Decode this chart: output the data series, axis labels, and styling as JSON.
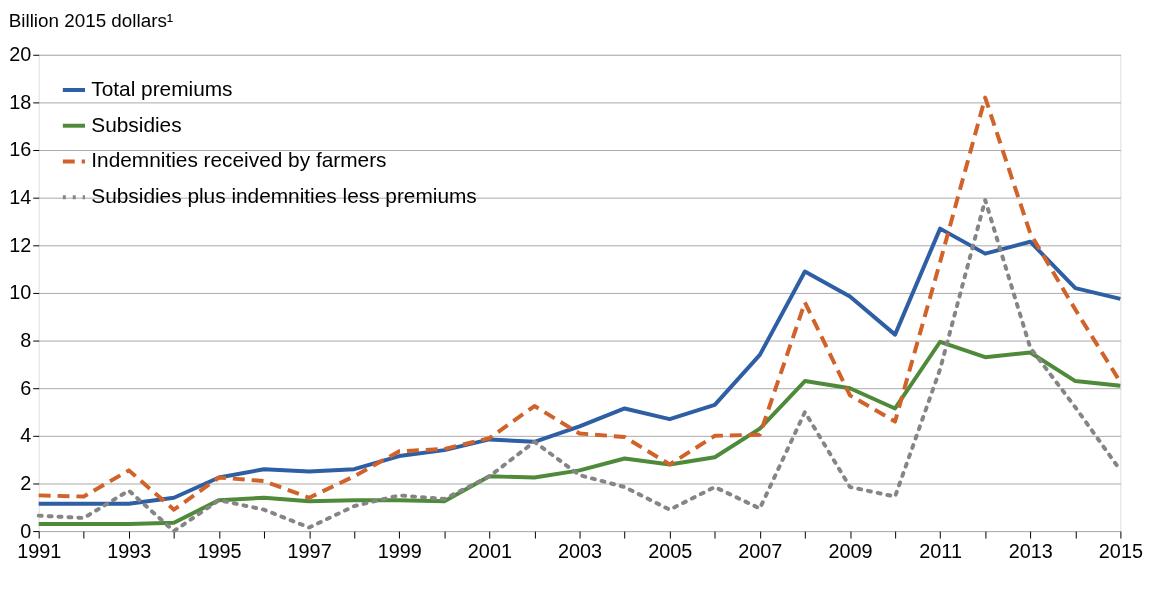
{
  "chart_data": {
    "type": "line",
    "ylabel": "Billion 2015 dollars¹",
    "x": [
      1991,
      1992,
      1993,
      1994,
      1995,
      1996,
      1997,
      1998,
      1999,
      2000,
      2001,
      2002,
      2003,
      2004,
      2005,
      2006,
      2007,
      2008,
      2009,
      2010,
      2011,
      2012,
      2013,
      2014,
      2015
    ],
    "series": [
      {
        "name": "Total premiums",
        "color": "#2e5ea3",
        "line_style": "solid",
        "values": [
          1.15,
          1.15,
          1.15,
          1.4,
          2.25,
          2.6,
          2.5,
          2.6,
          3.15,
          3.4,
          3.85,
          3.75,
          4.4,
          5.15,
          4.7,
          5.3,
          7.4,
          10.9,
          9.85,
          8.25,
          12.7,
          11.65,
          12.15,
          10.2,
          9.75
        ]
      },
      {
        "name": "Subsidies",
        "color": "#4e8a3a",
        "line_style": "solid",
        "values": [
          0.3,
          0.3,
          0.3,
          0.35,
          1.3,
          1.4,
          1.25,
          1.3,
          1.3,
          1.25,
          2.3,
          2.25,
          2.55,
          3.05,
          2.8,
          3.1,
          4.3,
          6.3,
          6.0,
          5.15,
          7.95,
          7.3,
          7.5,
          6.3,
          6.1
        ]
      },
      {
        "name": "Indemnities received by farmers",
        "color": "#d0622a",
        "line_style": "dashed",
        "values": [
          1.5,
          1.45,
          2.55,
          0.9,
          2.25,
          2.1,
          1.4,
          2.3,
          3.35,
          3.45,
          3.9,
          5.25,
          4.1,
          3.95,
          2.8,
          4.0,
          4.05,
          9.6,
          5.7,
          4.6,
          11.3,
          18.2,
          12.5,
          9.3,
          6.25
        ]
      },
      {
        "name": "Subsidies plus indemnities less premiums",
        "color": "#858585",
        "line_style": "dotted",
        "values": [
          0.65,
          0.55,
          1.7,
          0.0,
          1.3,
          0.9,
          0.15,
          1.05,
          1.5,
          1.35,
          2.3,
          3.75,
          2.35,
          1.85,
          0.9,
          1.85,
          0.95,
          5.0,
          1.85,
          1.45,
          6.8,
          13.9,
          7.7,
          5.2,
          2.55
        ]
      }
    ],
    "xlim": [
      1991,
      2015
    ],
    "xticks": [
      1991,
      {
        "value": 1992,
        "label": null
      },
      1993,
      {
        "value": 1994,
        "label": null
      },
      1995,
      {
        "value": 1996,
        "label": null
      },
      1997,
      {
        "value": 1998,
        "label": null
      },
      1999,
      {
        "value": 2000,
        "label": null
      },
      2001,
      {
        "value": 2002,
        "label": null
      },
      2003,
      {
        "value": 2004,
        "label": null
      },
      2005,
      {
        "value": 2006,
        "label": null
      },
      2007,
      {
        "value": 2008,
        "label": null
      },
      2009,
      {
        "value": 2010,
        "label": null
      },
      2011,
      {
        "value": 2012,
        "label": null
      },
      2013,
      {
        "value": 2014,
        "label": null
      },
      2015
    ],
    "ylim": [
      0,
      20
    ],
    "yticks": [
      0,
      2,
      4,
      6,
      8,
      10,
      12,
      14,
      16,
      18,
      20
    ],
    "grid": "y",
    "legend": "top left",
    "marker": "none"
  }
}
